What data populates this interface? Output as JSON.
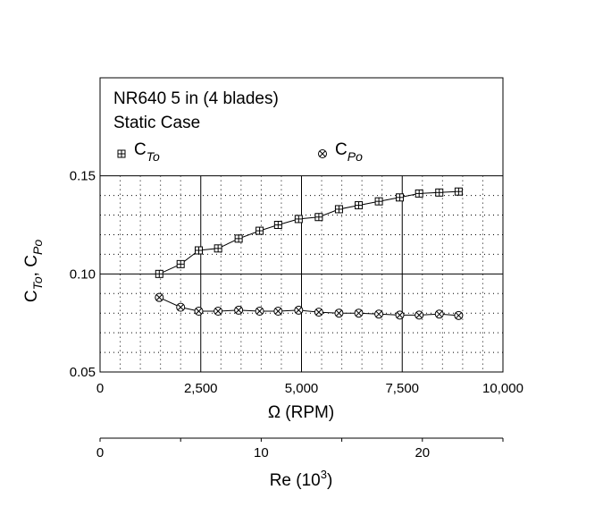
{
  "chart_data": {
    "type": "line",
    "title_lines": [
      "NR640 5 in (4 blades)",
      "Static Case"
    ],
    "xlabel": "Ω (RPM)",
    "ylabel_parts": {
      "c1": "C",
      "s1": "To",
      "comma": ", ",
      "c2": "C",
      "s2": "Po"
    },
    "xlim": [
      0,
      10000
    ],
    "ylim": [
      0.05,
      0.2
    ],
    "x_ticks": [
      0,
      2500,
      5000,
      7500,
      10000
    ],
    "x_tick_labels": [
      "0",
      "2,500",
      "5,000",
      "7,500",
      "10,000"
    ],
    "y_ticks": [
      0.05,
      0.1,
      0.15
    ],
    "y_tick_labels": [
      "0.05",
      "0.10",
      "0.15"
    ],
    "grid": true,
    "legend_placement": "top",
    "series": [
      {
        "name_main": "C",
        "name_sub": "To",
        "marker": "boxed-plus",
        "x": [
          1470,
          2000,
          2450,
          2930,
          3440,
          3960,
          4420,
          4930,
          5430,
          5930,
          6420,
          6920,
          7440,
          7920,
          8420,
          8900
        ],
        "values": [
          0.1,
          0.105,
          0.112,
          0.113,
          0.118,
          0.122,
          0.125,
          0.128,
          0.129,
          0.133,
          0.135,
          0.137,
          0.139,
          0.141,
          0.1415,
          0.142
        ]
      },
      {
        "name_main": "C",
        "name_sub": "Po",
        "marker": "circled-x",
        "x": [
          1470,
          2000,
          2450,
          2930,
          3440,
          3960,
          4420,
          4930,
          5430,
          5930,
          6420,
          6920,
          7440,
          7920,
          8420,
          8900
        ],
        "values": [
          0.088,
          0.083,
          0.081,
          0.081,
          0.0815,
          0.081,
          0.081,
          0.0815,
          0.0805,
          0.08,
          0.08,
          0.0795,
          0.079,
          0.079,
          0.0795,
          0.0788
        ]
      }
    ],
    "secondary_axis": {
      "label_main": "Re (10",
      "label_sup": "3",
      "label_close": ")",
      "lim": [
        0,
        25
      ],
      "ticks": [
        0,
        10,
        20
      ],
      "tick_labels": [
        "0",
        "10",
        "20"
      ]
    }
  }
}
